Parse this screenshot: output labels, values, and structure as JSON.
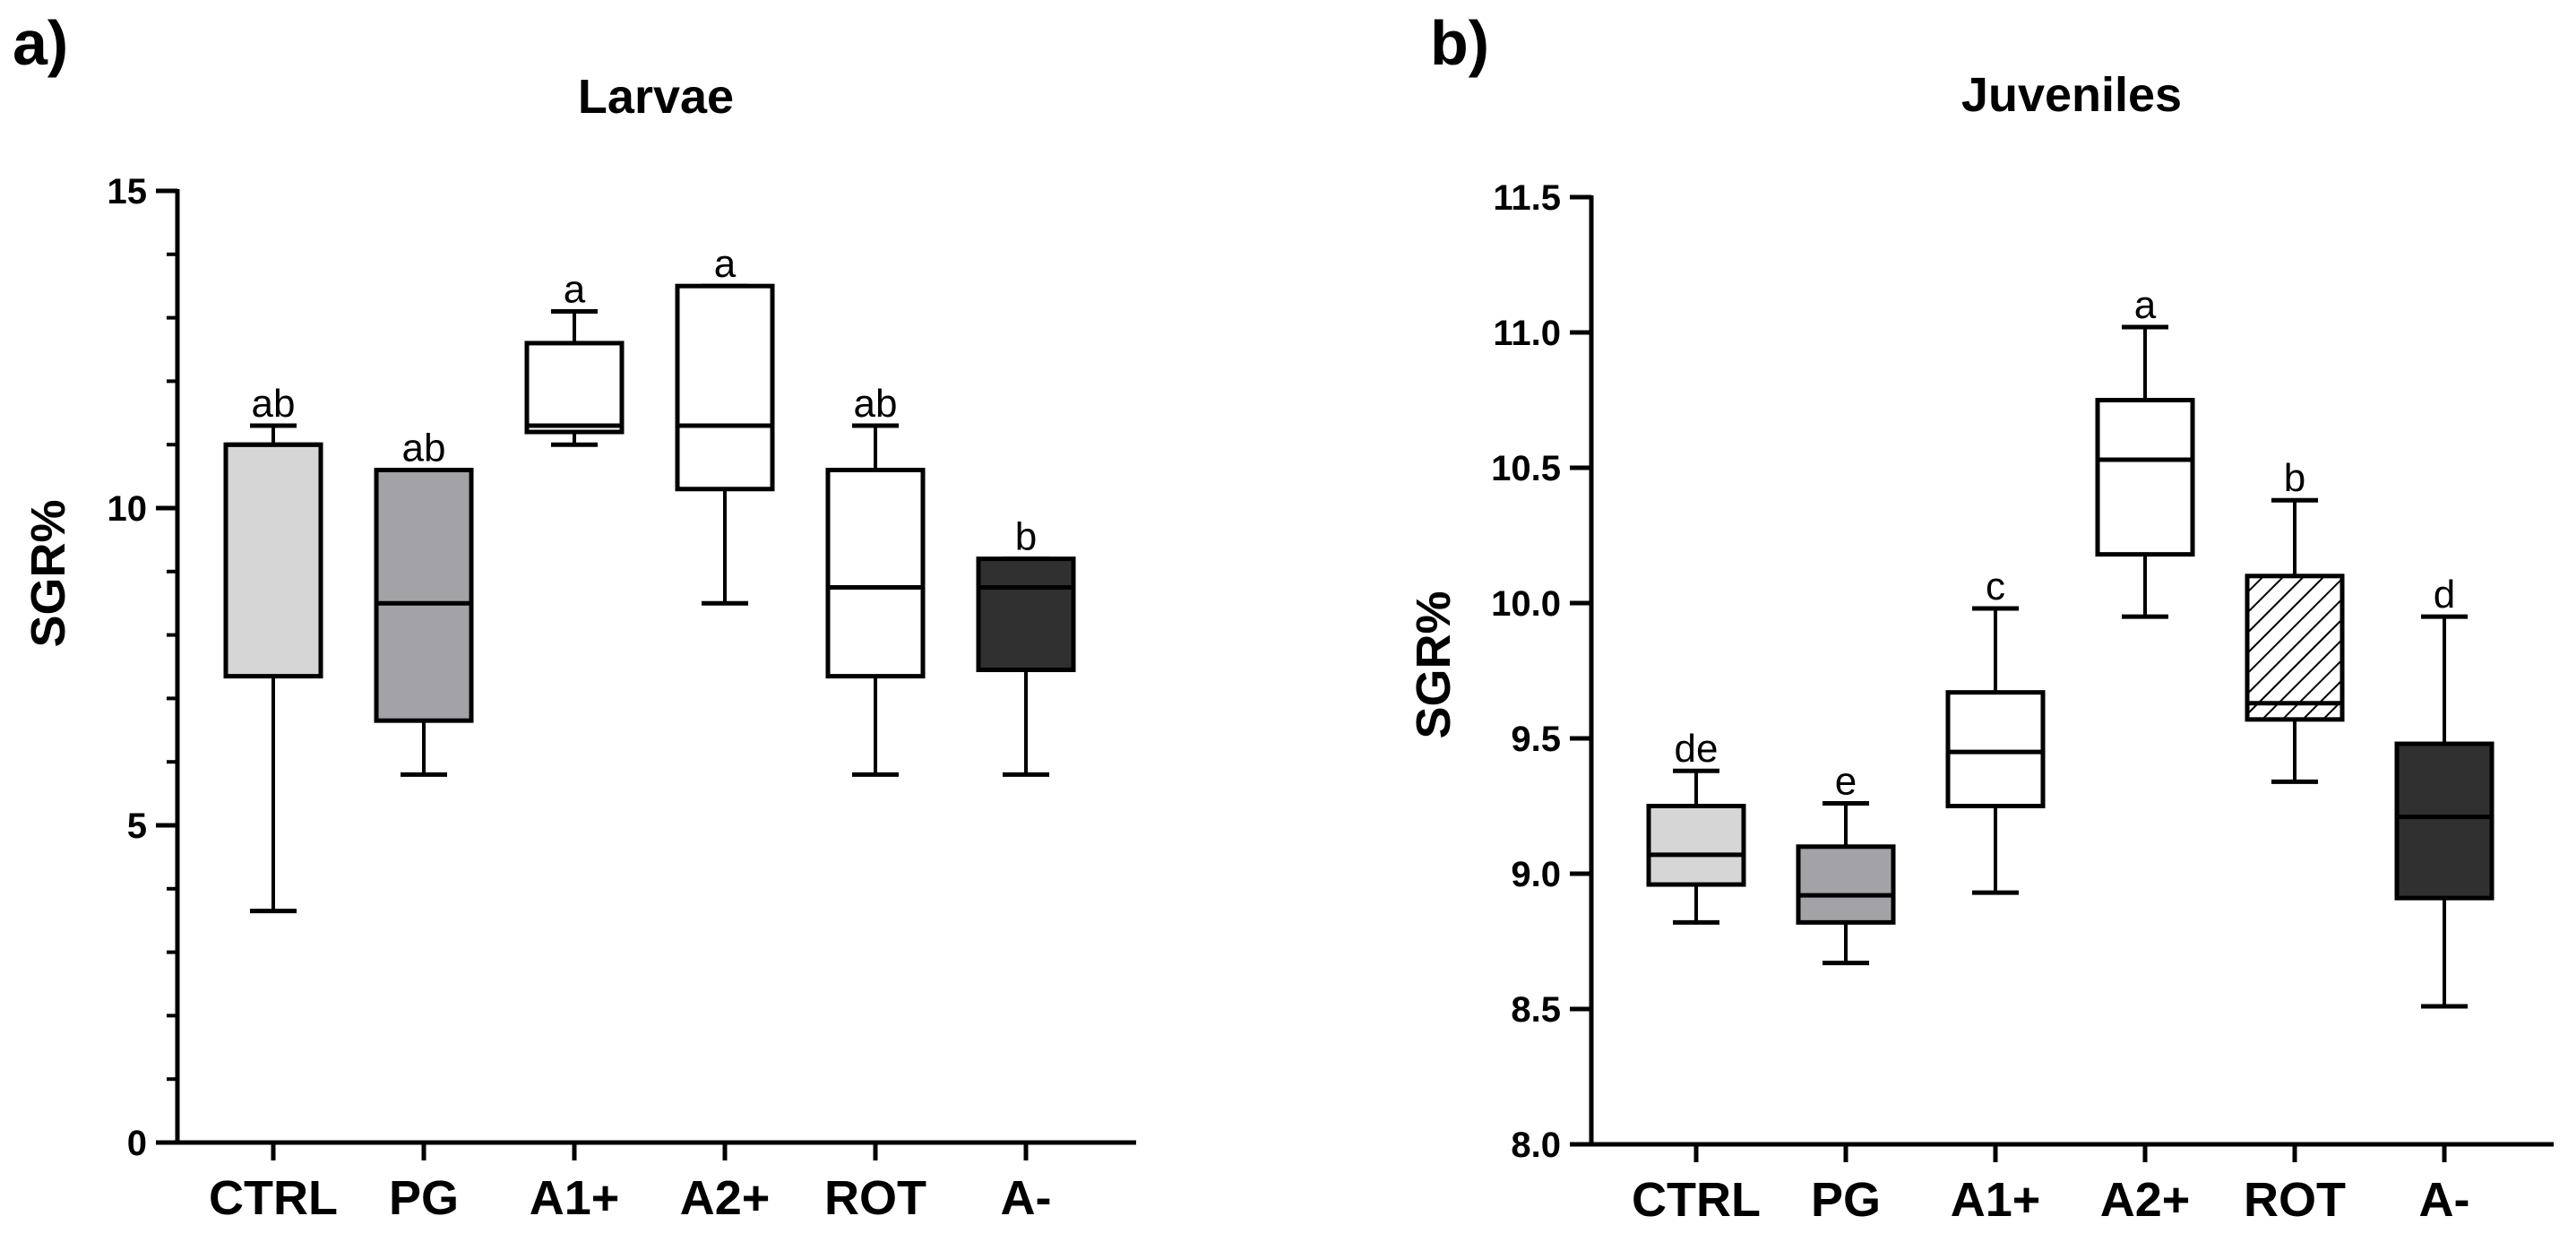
{
  "chart_data": [
    {
      "type": "box",
      "panel_label": "a)",
      "title": "Larvae",
      "xlabel": "",
      "ylabel": "SGR%",
      "ylim": [
        0,
        15
      ],
      "yticks": [
        "0",
        "5",
        "10",
        "15"
      ],
      "minor_ticks_per_major": 5,
      "grid": false,
      "categories": [
        "CTRL",
        "PG",
        "A1+",
        "A2+",
        "ROT",
        "A-"
      ],
      "boxes": [
        {
          "category": "CTRL",
          "min": 3.65,
          "q1": 7.35,
          "median": 11.0,
          "q3": 11.0,
          "max": 11.3,
          "fill": "#d6d6d6",
          "pattern": "none",
          "letter": "ab"
        },
        {
          "category": "PG",
          "min": 5.8,
          "q1": 6.65,
          "median": 8.5,
          "q3": 10.6,
          "max": 10.6,
          "fill": "#a2a2a7",
          "pattern": "none",
          "letter": "ab"
        },
        {
          "category": "A1+",
          "min": 11.0,
          "q1": 11.2,
          "median": 11.3,
          "q3": 12.6,
          "max": 13.1,
          "fill": "#ffffff",
          "pattern": "none",
          "letter": "a"
        },
        {
          "category": "A2+",
          "min": 8.5,
          "q1": 10.3,
          "median": 11.3,
          "q3": 13.5,
          "max": 13.5,
          "fill": "#ffffff",
          "pattern": "none",
          "letter": "a"
        },
        {
          "category": "ROT",
          "min": 5.8,
          "q1": 7.35,
          "median": 8.75,
          "q3": 10.6,
          "max": 11.3,
          "fill": "#ffffff",
          "pattern": "none",
          "letter": "ab"
        },
        {
          "category": "A-",
          "min": 5.8,
          "q1": 7.45,
          "median": 8.75,
          "q3": 9.2,
          "max": 9.2,
          "fill": "#303030",
          "pattern": "none",
          "letter": "b"
        }
      ]
    },
    {
      "type": "box",
      "panel_label": "b)",
      "title": "Juveniles",
      "xlabel": "",
      "ylabel": "SGR%",
      "ylim": [
        8.0,
        11.5
      ],
      "yticks": [
        "8.0",
        "8.5",
        "9.0",
        "9.5",
        "10.0",
        "10.5",
        "11.0",
        "11.5"
      ],
      "minor_ticks_per_major": 1,
      "grid": false,
      "categories": [
        "CTRL",
        "PG",
        "A1+",
        "A2+",
        "ROT",
        "A-"
      ],
      "boxes": [
        {
          "category": "CTRL",
          "min": 8.82,
          "q1": 8.96,
          "median": 9.07,
          "q3": 9.25,
          "max": 9.38,
          "fill": "#d6d6d6",
          "pattern": "none",
          "letter": "de"
        },
        {
          "category": "PG",
          "min": 8.67,
          "q1": 8.82,
          "median": 8.92,
          "q3": 9.1,
          "max": 9.26,
          "fill": "#a2a2a7",
          "pattern": "none",
          "letter": "e"
        },
        {
          "category": "A1+",
          "min": 8.93,
          "q1": 9.25,
          "median": 9.45,
          "q3": 9.67,
          "max": 9.98,
          "fill": "#ffffff",
          "pattern": "none",
          "letter": "c"
        },
        {
          "category": "A2+",
          "min": 9.95,
          "q1": 10.18,
          "median": 10.53,
          "q3": 10.75,
          "max": 11.02,
          "fill": "#ffffff",
          "pattern": "none",
          "letter": "a"
        },
        {
          "category": "ROT",
          "min": 9.34,
          "q1": 9.57,
          "median": 9.63,
          "q3": 10.1,
          "max": 10.38,
          "fill": "#ffffff",
          "pattern": "hatch",
          "letter": "b"
        },
        {
          "category": "A-",
          "min": 8.51,
          "q1": 8.91,
          "median": 9.21,
          "q3": 9.48,
          "max": 9.95,
          "fill": "#303030",
          "pattern": "none",
          "letter": "d"
        }
      ]
    }
  ]
}
